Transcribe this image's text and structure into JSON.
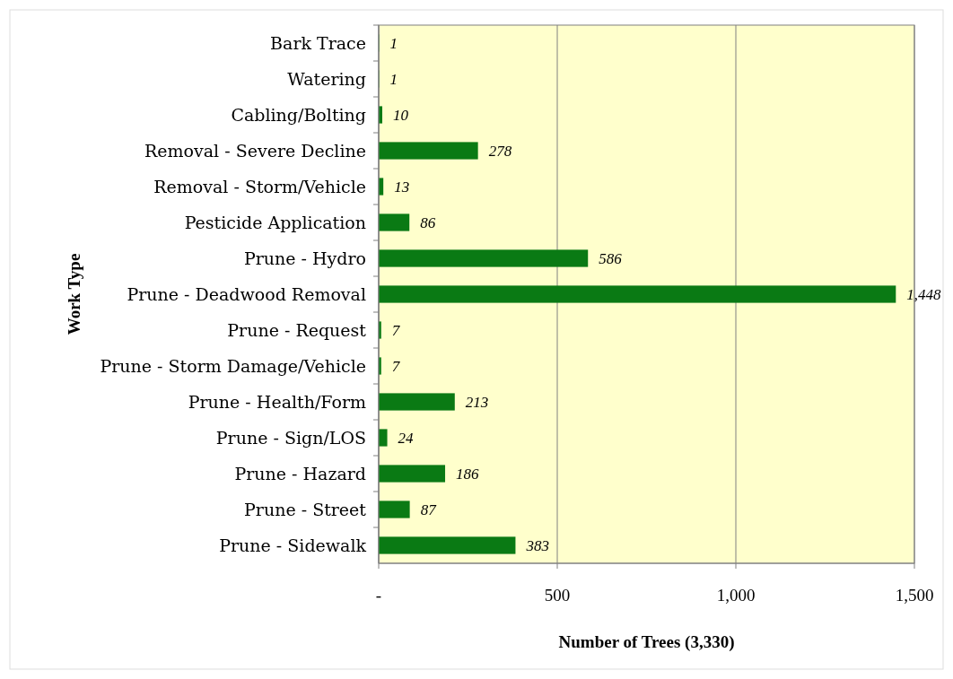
{
  "chart_data": {
    "type": "bar",
    "orientation": "horizontal",
    "xlabel": "Number of Trees (3,330)",
    "ylabel": "Work Type",
    "categories": [
      "Bark Trace",
      "Watering",
      "Cabling/Bolting",
      "Removal - Severe Decline",
      "Removal - Storm/Vehicle",
      "Pesticide Application",
      "Prune - Hydro",
      "Prune - Deadwood Removal",
      "Prune - Request",
      "Prune - Storm Damage/Vehicle",
      "Prune - Health/Form",
      "Prune - Sign/LOS",
      "Prune - Hazard",
      "Prune - Street",
      "Prune - Sidewalk"
    ],
    "values": [
      1,
      1,
      10,
      278,
      13,
      86,
      586,
      1448,
      7,
      7,
      213,
      24,
      186,
      87,
      383
    ],
    "value_labels": [
      "1",
      "1",
      "10",
      "278",
      "13",
      "86",
      "586",
      "1,448",
      "7",
      "7",
      "213",
      "24",
      "186",
      "87",
      "383"
    ],
    "color": "#0a7a14",
    "xlim": [
      0,
      1500
    ],
    "xticks": [
      {
        "value": 0,
        "label": "-"
      },
      500,
      {
        "value": 1000,
        "label": "1,000"
      },
      {
        "value": 1500,
        "label": "1,500"
      }
    ],
    "grid": "x"
  }
}
